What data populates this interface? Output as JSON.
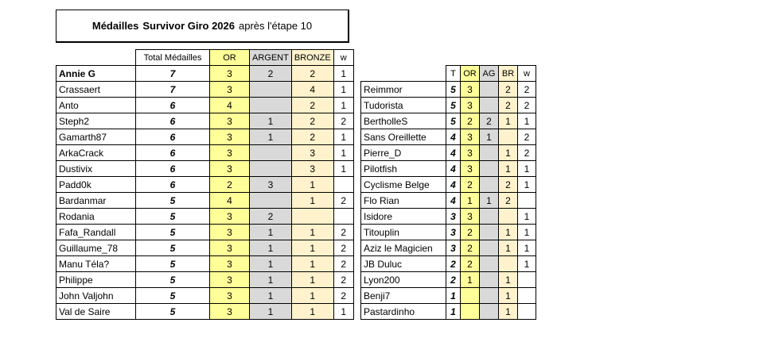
{
  "title": {
    "part1": "Médailles",
    "part2": "Survivor Giro 2026",
    "part3": "après l'étape 10"
  },
  "left_table": {
    "columns": [
      "Total Médailles",
      "OR",
      "ARGENT",
      "BRONZE",
      "w"
    ],
    "rows": [
      [
        "Annie G",
        7,
        3,
        2,
        2,
        1
      ],
      [
        "Crassaert",
        7,
        3,
        null,
        4,
        1
      ],
      [
        "Anto",
        6,
        4,
        null,
        2,
        1
      ],
      [
        "Steph2",
        6,
        3,
        1,
        2,
        2
      ],
      [
        "Gamarth87",
        6,
        3,
        1,
        2,
        1
      ],
      [
        "ArkaCrack",
        6,
        3,
        null,
        3,
        1
      ],
      [
        "Dustivix",
        6,
        3,
        null,
        3,
        1
      ],
      [
        "Padd0k",
        6,
        2,
        3,
        1,
        null
      ],
      [
        "Bardanmar",
        5,
        4,
        null,
        1,
        2
      ],
      [
        "Rodania",
        5,
        3,
        2,
        null,
        null
      ],
      [
        "Fafa_Randall",
        5,
        3,
        1,
        1,
        2
      ],
      [
        "Guillaume_78",
        5,
        3,
        1,
        1,
        2
      ],
      [
        "Manu Téla?",
        5,
        3,
        1,
        1,
        2
      ],
      [
        "Philippe",
        5,
        3,
        1,
        1,
        2
      ],
      [
        "John Valjohn",
        5,
        3,
        1,
        1,
        2
      ],
      [
        "Val de Saire",
        5,
        3,
        1,
        1,
        1
      ]
    ]
  },
  "right_table": {
    "columns": [
      "T",
      "OR",
      "AG",
      "BR",
      "w"
    ],
    "rows": [
      [
        "Reimmor",
        5,
        3,
        null,
        2,
        2
      ],
      [
        "Tudorista",
        5,
        3,
        null,
        2,
        2
      ],
      [
        "BertholleS",
        5,
        2,
        2,
        1,
        1
      ],
      [
        "Sans Oreillette",
        4,
        3,
        1,
        null,
        2
      ],
      [
        "Pierre_D",
        4,
        3,
        null,
        1,
        2
      ],
      [
        "Pilotfish",
        4,
        3,
        null,
        1,
        1
      ],
      [
        "Cyclisme Belge",
        4,
        2,
        null,
        2,
        1
      ],
      [
        "Flo Rian",
        4,
        1,
        1,
        2,
        null
      ],
      [
        "Isidore",
        3,
        3,
        null,
        null,
        1
      ],
      [
        "Titouplin",
        3,
        2,
        null,
        1,
        1
      ],
      [
        "Aziz le Magicien",
        3,
        2,
        null,
        1,
        1
      ],
      [
        "JB Duluc",
        2,
        2,
        null,
        null,
        1
      ],
      [
        "Lyon200",
        2,
        1,
        null,
        1,
        null
      ],
      [
        "Benji7",
        1,
        null,
        null,
        1,
        null
      ],
      [
        "Pastardinho",
        1,
        null,
        null,
        1,
        null
      ]
    ]
  }
}
